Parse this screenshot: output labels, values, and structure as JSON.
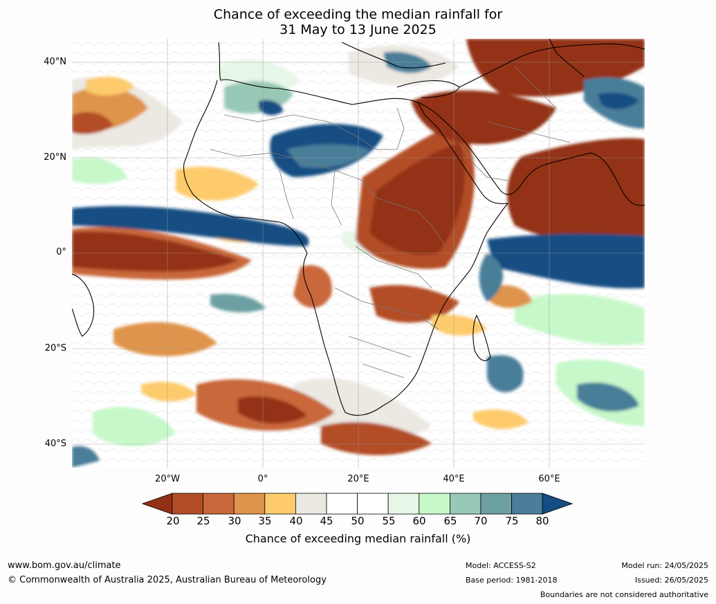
{
  "title": {
    "line1": "Chance of exceeding the median rainfall for",
    "line2": "31 May to 13 June 2025"
  },
  "map": {
    "extent": {
      "lon": [
        -40,
        80
      ],
      "lat": [
        -45,
        45
      ]
    },
    "lat_ticks": [
      {
        "label": "40°N",
        "value": 40
      },
      {
        "label": "20°N",
        "value": 20
      },
      {
        "label": "0°",
        "value": 0
      },
      {
        "label": "20°S",
        "value": -20
      },
      {
        "label": "40°S",
        "value": -40
      }
    ],
    "lon_ticks": [
      {
        "label": "20°W",
        "value": -20
      },
      {
        "label": "0°",
        "value": 0
      },
      {
        "label": "20°E",
        "value": 20
      },
      {
        "label": "40°E",
        "value": 40
      },
      {
        "label": "60°E",
        "value": 60
      }
    ],
    "grid": true
  },
  "colorbar": {
    "ticks": [
      "20",
      "25",
      "30",
      "35",
      "40",
      "45",
      "50",
      "55",
      "60",
      "65",
      "70",
      "75",
      "80"
    ],
    "colors": [
      "#933116",
      "#b24d27",
      "#c9683a",
      "#df944b",
      "#fdcb6c",
      "#ece8e2",
      "#ffffff",
      "#ffffff",
      "#e8f6e8",
      "#c6f8c9",
      "#98c9b6",
      "#6da0a3",
      "#4a7e99",
      "#144d82"
    ],
    "label": "Chance of exceeding median rainfall (%)"
  },
  "footer": {
    "website": "www.bom.gov.au/climate",
    "copyright": "© Commonwealth of Australia 2025, Australian Bureau of Meteorology",
    "model": "Model: ACCESS-S2",
    "base_period": "Base period: 1981-2018",
    "model_run": "Model run: 24/05/2025",
    "issued": "Issued: 26/05/2025",
    "disclaimer": "Boundaries are not considered authoritative"
  }
}
